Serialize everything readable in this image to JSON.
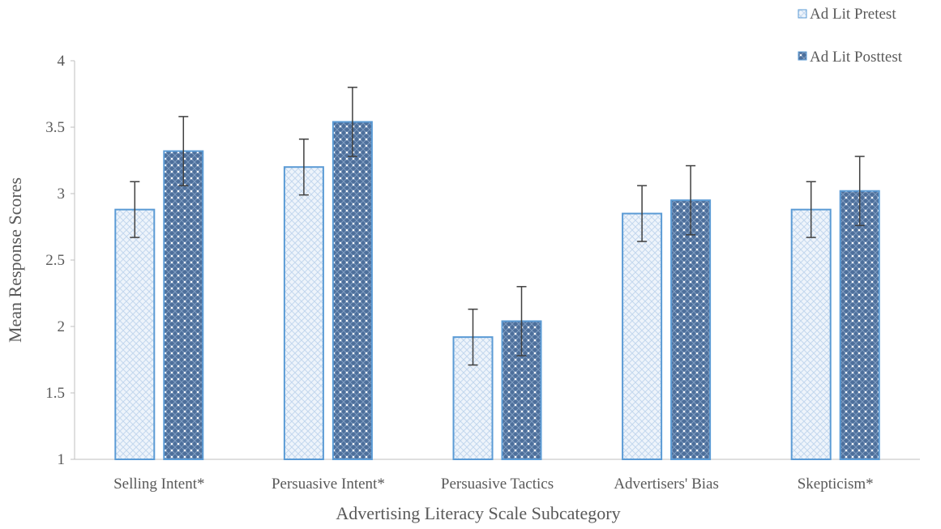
{
  "chart_data": {
    "type": "bar",
    "xlabel": "Advertising Literacy Scale Subcategory",
    "ylabel": "Mean Response Scores",
    "ylim": [
      1,
      4
    ],
    "yticks": [
      "1",
      "1.5",
      "2",
      "2.5",
      "3",
      "3.5",
      "4"
    ],
    "grid": false,
    "legend_position": "top-right",
    "categories": [
      "Selling Intent*",
      "Persuasive Intent*",
      "Persuasive Tactics",
      "Advertisers' Bias",
      "Skepticism*"
    ],
    "series": [
      {
        "name": "Ad Lit Pretest",
        "values": [
          2.88,
          3.2,
          1.92,
          2.85,
          2.88
        ],
        "error": [
          0.21,
          0.21,
          0.21,
          0.21,
          0.21
        ],
        "color": "#5b9bd5",
        "fill": "#e7f0fa",
        "pattern": "light-crosshatch"
      },
      {
        "name": "Ad Lit Posttest",
        "values": [
          3.32,
          3.54,
          2.04,
          2.95,
          3.02
        ],
        "error": [
          0.26,
          0.26,
          0.26,
          0.26,
          0.26
        ],
        "color": "#5b9bd5",
        "fill": "#4d6f9b",
        "pattern": "dark-dotted-check"
      }
    ]
  }
}
